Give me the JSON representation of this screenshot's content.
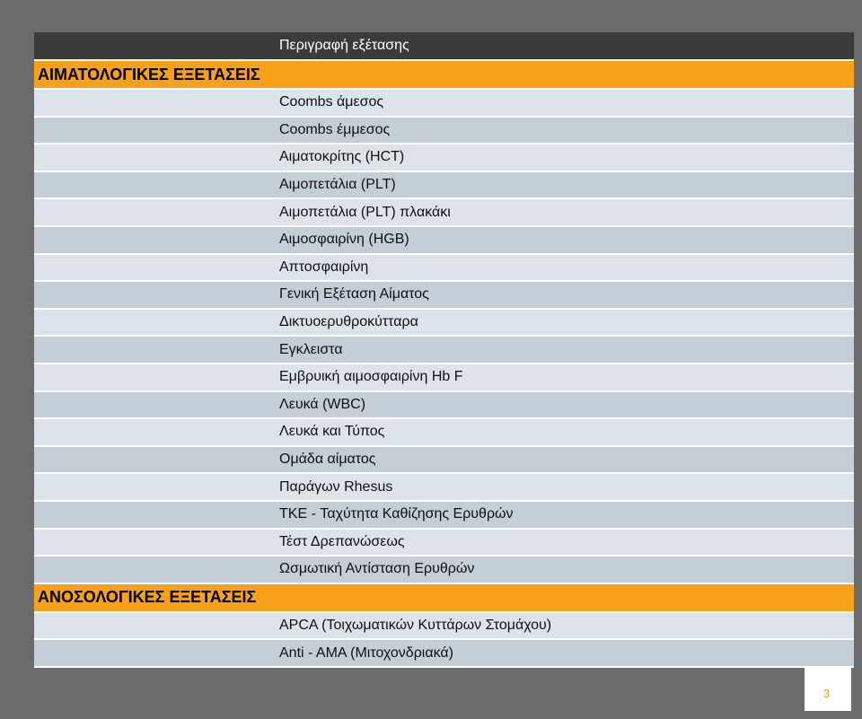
{
  "table": {
    "header": {
      "category": "",
      "description": "Περιγραφή εξέτασης"
    },
    "sections": [
      {
        "title": "ΑΙΜΑΤΟΛΟΓΙΚΕΣ ΕΞΕΤΑΣΕΙΣ",
        "items": [
          "Coombs άμεσος",
          "Coombs έμμεσος",
          "Αιματοκρίτης (HCT)",
          "Αιμοπετάλια (PLT)",
          "Αιμοπετάλια (PLT) πλακάκι",
          "Αιμοσφαιρίνη (HGB)",
          "Απτοσφαιρίνη",
          "Γενική Εξέταση Αίματος",
          "Δικτυοερυθροκύτταρα",
          "Εγκλειστα",
          "Εμβρυική αιμοσφαιρίνη Hb F",
          "Λευκά (WBC)",
          "Λευκά και Τύπος",
          "Ομάδα αίματος",
          "Παράγων Rhesus",
          "TKE - Ταχύτητα Καθίζησης Ερυθρών",
          "Τέστ Δρεπανώσεως",
          "Ωσμωτική Αντίσταση Ερυθρών"
        ]
      },
      {
        "title": "ΑΝΟΣΟΛΟΓΙΚΕΣ ΕΞΕΤΑΣΕΙΣ",
        "items": [
          "APCA (Τοιχωματικών Κυττάρων Στομάχου)",
          "Anti - AMA (Μιτοχονδριακά)"
        ]
      }
    ]
  },
  "page_number": "3",
  "colors": {
    "header_bg": "#3b3b3b",
    "section_bg": "#f7a11a",
    "row_light": "#dde3ea",
    "row_dark": "#c4ced6",
    "page_bg": "#6b6b6b",
    "page_number": "#f39c12"
  }
}
